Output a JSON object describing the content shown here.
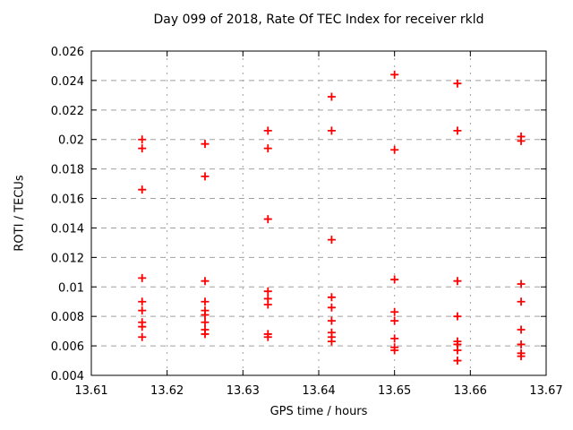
{
  "chart": {
    "title": "Day 099 of 2018, Rate Of TEC Index for receiver rkld",
    "xlabel": "GPS time / hours",
    "ylabel": "ROTI / TECUs"
  },
  "chart_data": {
    "type": "scatter",
    "title": "Day 099 of 2018, Rate Of TEC Index for receiver rkld",
    "xlabel": "GPS time / hours",
    "ylabel": "ROTI / TECUs",
    "xlim": [
      13.61,
      13.67
    ],
    "ylim": [
      0.004,
      0.026
    ],
    "x_ticks": [
      13.61,
      13.62,
      13.63,
      13.64,
      13.65,
      13.66,
      13.67
    ],
    "x_tick_labels": [
      "13.61",
      "13.62",
      "13.63",
      "13.64",
      "13.65",
      "13.66",
      "13.67"
    ],
    "y_ticks": [
      0.004,
      0.006,
      0.008,
      0.01,
      0.012,
      0.014,
      0.016,
      0.018,
      0.02,
      0.022,
      0.024,
      0.026
    ],
    "y_tick_labels": [
      "0.004",
      "0.006",
      "0.008",
      "0.01",
      "0.012",
      "0.014",
      "0.016",
      "0.018",
      "0.02",
      "0.022",
      "0.024",
      "0.026"
    ],
    "grid": true,
    "legend": "none",
    "marker": {
      "shape": "plus",
      "color": "#ff0000"
    },
    "grid_color": "#a0a0a0",
    "border_color": "#000000",
    "series": [
      {
        "name": "ROTI",
        "points": [
          [
            13.6167,
            0.02
          ],
          [
            13.6167,
            0.0194
          ],
          [
            13.6167,
            0.0166
          ],
          [
            13.6167,
            0.0106
          ],
          [
            13.6167,
            0.009
          ],
          [
            13.6167,
            0.0084
          ],
          [
            13.6167,
            0.0076
          ],
          [
            13.6167,
            0.0073
          ],
          [
            13.6167,
            0.0066
          ],
          [
            13.625,
            0.0197
          ],
          [
            13.625,
            0.0175
          ],
          [
            13.625,
            0.0104
          ],
          [
            13.625,
            0.009
          ],
          [
            13.625,
            0.0084
          ],
          [
            13.625,
            0.0081
          ],
          [
            13.625,
            0.0076
          ],
          [
            13.625,
            0.0071
          ],
          [
            13.625,
            0.0068
          ],
          [
            13.6333,
            0.0206
          ],
          [
            13.6333,
            0.0194
          ],
          [
            13.6333,
            0.0146
          ],
          [
            13.6333,
            0.0097
          ],
          [
            13.6333,
            0.0092
          ],
          [
            13.6333,
            0.0088
          ],
          [
            13.6333,
            0.0068
          ],
          [
            13.6333,
            0.0066
          ],
          [
            13.6417,
            0.0229
          ],
          [
            13.6417,
            0.0206
          ],
          [
            13.6417,
            0.0132
          ],
          [
            13.6417,
            0.0093
          ],
          [
            13.6417,
            0.0086
          ],
          [
            13.6417,
            0.0077
          ],
          [
            13.6417,
            0.0069
          ],
          [
            13.6417,
            0.0066
          ],
          [
            13.6417,
            0.0063
          ],
          [
            13.65,
            0.0244
          ],
          [
            13.65,
            0.0193
          ],
          [
            13.65,
            0.0105
          ],
          [
            13.65,
            0.0083
          ],
          [
            13.65,
            0.0077
          ],
          [
            13.65,
            0.0065
          ],
          [
            13.65,
            0.0059
          ],
          [
            13.65,
            0.0057
          ],
          [
            13.6583,
            0.0238
          ],
          [
            13.6583,
            0.0206
          ],
          [
            13.6583,
            0.0104
          ],
          [
            13.6583,
            0.008
          ],
          [
            13.6583,
            0.0063
          ],
          [
            13.6583,
            0.0061
          ],
          [
            13.6583,
            0.0057
          ],
          [
            13.6583,
            0.005
          ],
          [
            13.6667,
            0.0202
          ],
          [
            13.6667,
            0.0199
          ],
          [
            13.6667,
            0.0102
          ],
          [
            13.6667,
            0.009
          ],
          [
            13.6667,
            0.0071
          ],
          [
            13.6667,
            0.0061
          ],
          [
            13.6667,
            0.0055
          ],
          [
            13.6667,
            0.0053
          ]
        ]
      }
    ]
  }
}
